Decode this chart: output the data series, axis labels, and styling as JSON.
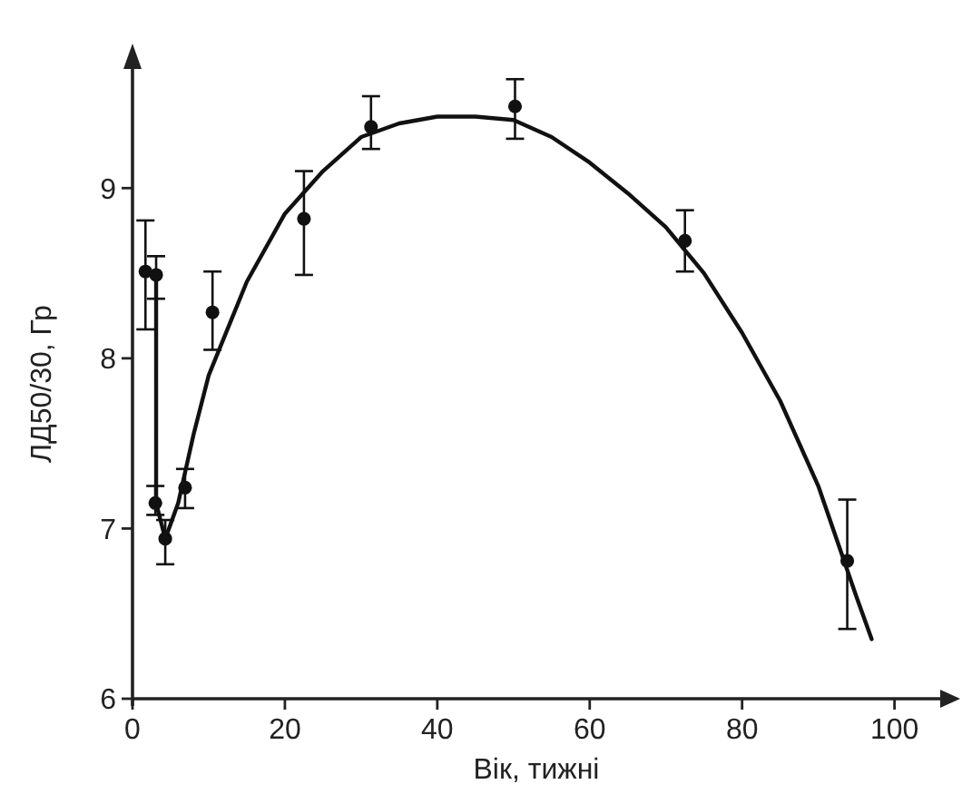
{
  "chart_data": {
    "type": "scatter",
    "xlabel": "Вік, тижні",
    "ylabel": "ЛД50/30, Гр",
    "xlim": [
      0,
      106
    ],
    "ylim": [
      6,
      9.7
    ],
    "xticks": [
      0,
      20,
      40,
      60,
      80,
      100
    ],
    "yticks": [
      6,
      7,
      8,
      9
    ],
    "grid": false,
    "series": [
      {
        "color": "#111111",
        "marker": "circle",
        "x": [
          1.7,
          3.1,
          3.0,
          4.3,
          6.9,
          10.5,
          22.5,
          31.3,
          50.2,
          72.5,
          93.8
        ],
        "values": [
          8.51,
          8.49,
          7.15,
          6.94,
          7.24,
          8.27,
          8.82,
          9.36,
          9.48,
          8.69,
          6.81
        ],
        "errors": [
          [
            8.17,
            8.81
          ],
          [
            8.35,
            8.6
          ],
          [
            7.08,
            7.25
          ],
          [
            6.79,
            7.05
          ],
          [
            7.12,
            7.35
          ],
          [
            8.05,
            8.51
          ],
          [
            8.49,
            9.1
          ],
          [
            9.23,
            9.54
          ],
          [
            9.29,
            9.64
          ],
          [
            8.51,
            8.87
          ],
          [
            6.41,
            7.17
          ]
        ]
      },
      {
        "type": "line",
        "color": "#111111",
        "marker": "none",
        "line_style": "solid",
        "x": [
          1.7,
          3.1,
          3.1,
          4.3,
          6,
          8,
          10,
          15,
          20,
          25,
          30,
          35,
          40,
          45,
          50,
          55,
          60,
          65,
          70,
          75,
          80,
          85,
          90,
          95,
          97
        ],
        "values": [
          8.51,
          8.49,
          7.15,
          6.94,
          7.15,
          7.55,
          7.9,
          8.45,
          8.85,
          9.1,
          9.3,
          9.38,
          9.42,
          9.42,
          9.4,
          9.3,
          9.15,
          8.97,
          8.77,
          8.5,
          8.15,
          7.75,
          7.25,
          6.6,
          6.35
        ]
      }
    ]
  }
}
